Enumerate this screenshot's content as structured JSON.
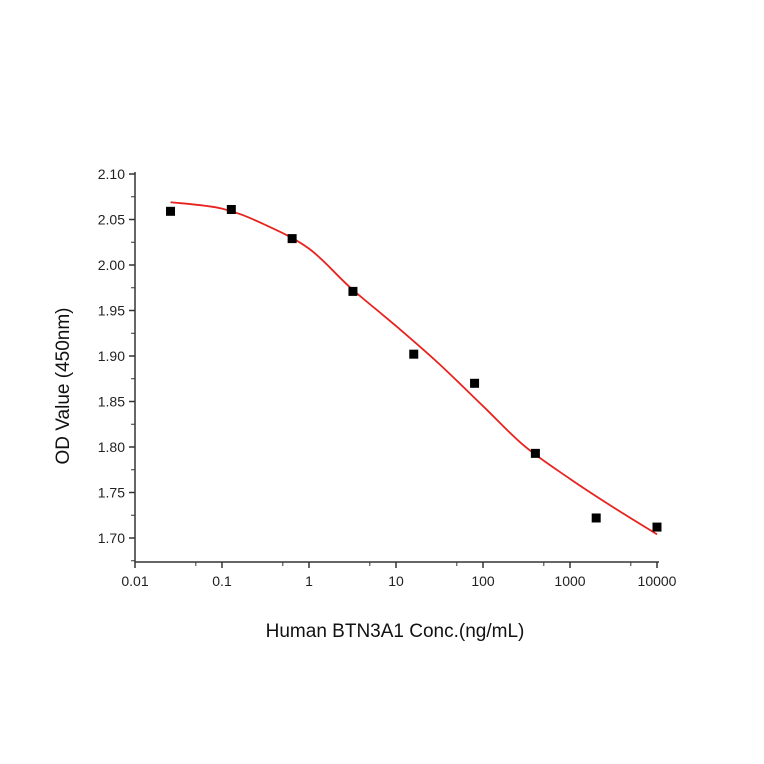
{
  "chart_data": {
    "type": "scatter",
    "title": "",
    "xlabel": "Human BTN3A1 Conc.(ng/mL)",
    "ylabel": "OD Value (450nm)",
    "xscale": "log",
    "xlim": [
      0.01,
      10500
    ],
    "ylim": [
      1.675,
      2.1
    ],
    "grid": false,
    "x_ticks": [
      0.01,
      0.1,
      1,
      10,
      100,
      1000,
      10000
    ],
    "x_tick_labels": [
      "0.01",
      "0.1",
      "1",
      "10",
      "100",
      "1000",
      "10000"
    ],
    "y_ticks": [
      1.7,
      1.75,
      1.8,
      1.85,
      1.9,
      1.95,
      2.0,
      2.05,
      2.1
    ],
    "y_tick_labels": [
      "1.70",
      "1.75",
      "1.80",
      "1.85",
      "1.90",
      "1.95",
      "2.00",
      "2.05",
      "2.10"
    ],
    "series": [
      {
        "name": "measured",
        "marker": "square",
        "color": "#000000",
        "x": [
          0.0256,
          0.128,
          0.64,
          3.2,
          16,
          80,
          400,
          2000,
          10000
        ],
        "y": [
          2.059,
          2.061,
          2.029,
          1.971,
          1.902,
          1.87,
          1.793,
          1.722,
          1.712
        ]
      },
      {
        "name": "fit",
        "type": "line",
        "color": "#e8231f",
        "x": [
          0.0256,
          0.1,
          0.3,
          1,
          3,
          10,
          30,
          100,
          300,
          1000,
          3000,
          10000
        ],
        "y": [
          2.069,
          2.062,
          2.045,
          2.018,
          1.975,
          1.933,
          1.893,
          1.845,
          1.801,
          1.765,
          1.735,
          1.704
        ]
      }
    ]
  }
}
